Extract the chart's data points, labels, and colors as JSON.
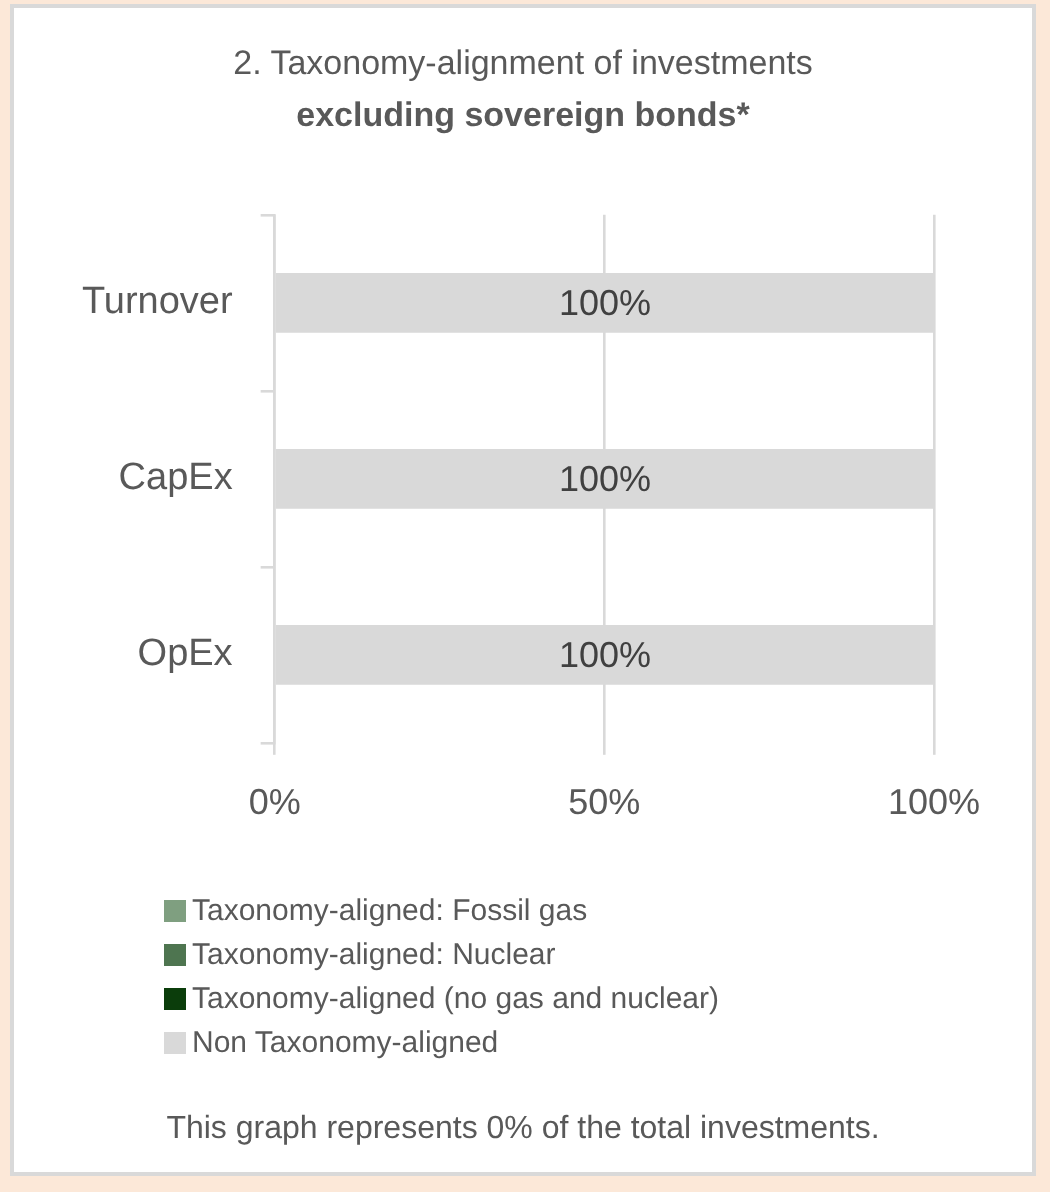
{
  "chart_data": {
    "type": "bar",
    "orientation": "horizontal",
    "stacked": true,
    "title": "2. Taxonomy-alignment of investments",
    "subtitle": "excluding sovereign bonds*",
    "categories": [
      "Turnover",
      "CapEx",
      "OpEx"
    ],
    "series": [
      {
        "name": "Taxonomy-aligned: Fossil gas",
        "color": "#7f9f80",
        "values": [
          0,
          0,
          0
        ]
      },
      {
        "name": "Taxonomy-aligned: Nuclear",
        "color": "#4e7550",
        "values": [
          0,
          0,
          0
        ]
      },
      {
        "name": "Taxonomy-aligned (no gas and nuclear)",
        "color": "#0b3d0b",
        "values": [
          0,
          0,
          0
        ]
      },
      {
        "name": "Non Taxonomy-aligned",
        "color": "#d9d9d9",
        "values": [
          100,
          100,
          100
        ],
        "value_labels": [
          "100%",
          "100%",
          "100%"
        ]
      }
    ],
    "xlim": [
      0,
      100
    ],
    "xticks": [
      {
        "value": 0,
        "label": "0%"
      },
      {
        "value": 50,
        "label": "50%"
      },
      {
        "value": 100,
        "label": "100%"
      }
    ],
    "grid": "x",
    "legend": "bottom",
    "annotations": [
      "This graph represents 0% of the total investments."
    ]
  }
}
